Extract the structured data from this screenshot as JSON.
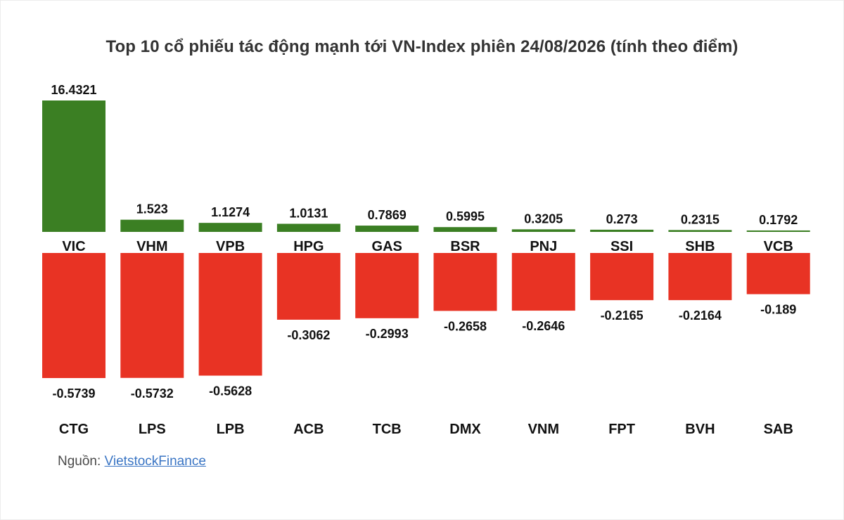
{
  "chart_data": {
    "type": "bar",
    "title": "Top 10 cổ phiếu tác động mạnh tới VN-Index phiên 24/08/2026 (tính theo điểm)",
    "series": [
      {
        "categories": [
          "VIC",
          "VHM",
          "VPB",
          "HPG",
          "GAS",
          "BSR",
          "PNJ",
          "SSI",
          "SHB",
          "VCB"
        ],
        "values": [
          16.4321,
          1.523,
          1.1274,
          1.0131,
          0.7869,
          0.5995,
          0.3205,
          0.273,
          0.2315,
          0.1792
        ],
        "labels": [
          "16.4321",
          "1.523",
          "1.1274",
          "1.0131",
          "0.7869",
          "0.5995",
          "0.3205",
          "0.273",
          "0.2315",
          "0.1792"
        ],
        "color": "#3b7f23"
      },
      {
        "categories": [
          "CTG",
          "LPS",
          "LPB",
          "ACB",
          "TCB",
          "DMX",
          "VNM",
          "FPT",
          "BVH",
          "SAB"
        ],
        "values": [
          -0.5739,
          -0.5732,
          -0.5628,
          -0.3062,
          -0.2993,
          -0.2658,
          -0.2646,
          -0.2165,
          -0.2164,
          -0.189
        ],
        "labels": [
          "-0.5739",
          "-0.5732",
          "-0.5628",
          "-0.3062",
          "-0.2993",
          "-0.2658",
          "-0.2646",
          "-0.2165",
          "-0.2164",
          "-0.189"
        ],
        "color": "#e83324"
      }
    ]
  },
  "source": {
    "prefix": "Nguồn: ",
    "link_text": "VietstockFinance"
  }
}
